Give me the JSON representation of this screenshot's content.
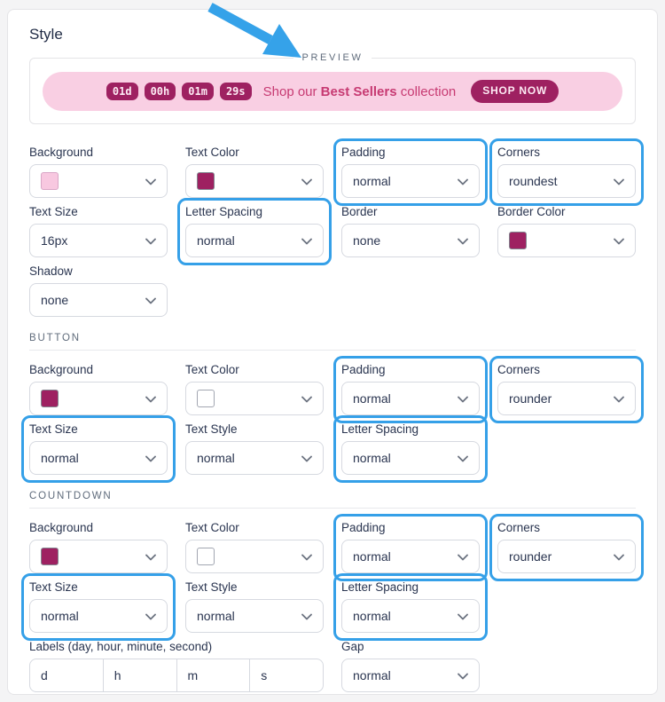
{
  "page": {
    "title": "Style"
  },
  "colors": {
    "accent_blue": "#35a0e8",
    "arrow_blue": "#35a2e9",
    "banner_background": "#f9cfe3",
    "chip_background": "#9e2161",
    "chip_text": "#fdeaf3",
    "message_text": "#c73a72",
    "swatch_light_pink": "#f8c8e0",
    "swatch_magenta": "#9e2161",
    "swatch_white": "#ffffff"
  },
  "preview": {
    "legend": "PREVIEW",
    "countdown_chips": [
      "01d",
      "00h",
      "01m",
      "29s"
    ],
    "message_prefix": "Shop our ",
    "message_bold": "Best Sellers",
    "message_suffix": " collection",
    "cta_label": "SHOP NOW"
  },
  "form": {
    "sections": [
      {
        "title": null,
        "rows": [
          {
            "fields": [
              {
                "type": "swatch",
                "name": "banner-background",
                "label": "Background",
                "swatch": "#f8c8e0",
                "swatch_border": "#d9a6c6",
                "highlight": false
              },
              {
                "type": "swatch",
                "name": "banner-text-color",
                "label": "Text Color",
                "swatch": "#9e2161",
                "swatch_border": "#83858f",
                "highlight": false
              },
              {
                "type": "select",
                "name": "banner-padding",
                "label": "Padding",
                "value": "normal",
                "highlight": true
              },
              {
                "type": "select",
                "name": "banner-corners",
                "label": "Corners",
                "value": "roundest",
                "highlight": true
              }
            ]
          },
          {
            "fields": [
              {
                "type": "select",
                "name": "banner-text-size",
                "label": "Text Size",
                "value": "16px",
                "highlight": false
              },
              {
                "type": "select",
                "name": "banner-letter-spacing",
                "label": "Letter Spacing",
                "value": "normal",
                "highlight": true
              },
              {
                "type": "select",
                "name": "banner-border",
                "label": "Border",
                "value": "none",
                "highlight": false
              },
              {
                "type": "swatch",
                "name": "banner-border-color",
                "label": "Border Color",
                "swatch": "#9e2161",
                "swatch_border": "#83858f",
                "highlight": false
              }
            ]
          },
          {
            "fields": [
              {
                "type": "select",
                "name": "banner-shadow",
                "label": "Shadow",
                "value": "none",
                "highlight": false
              }
            ]
          }
        ]
      },
      {
        "title": "BUTTON",
        "rows": [
          {
            "fields": [
              {
                "type": "swatch",
                "name": "button-background",
                "label": "Background",
                "swatch": "#9e2161",
                "swatch_border": "#83858f",
                "highlight": false
              },
              {
                "type": "swatch",
                "name": "button-text-color",
                "label": "Text Color",
                "swatch": "#ffffff",
                "swatch_border": "#a2a6b1",
                "highlight": false
              },
              {
                "type": "select",
                "name": "button-padding",
                "label": "Padding",
                "value": "normal",
                "highlight": true
              },
              {
                "type": "select",
                "name": "button-corners",
                "label": "Corners",
                "value": "rounder",
                "highlight": true
              }
            ]
          },
          {
            "fields": [
              {
                "type": "select",
                "name": "button-text-size",
                "label": "Text Size",
                "value": "normal",
                "highlight": true
              },
              {
                "type": "select",
                "name": "button-text-style",
                "label": "Text Style",
                "value": "normal",
                "highlight": false
              },
              {
                "type": "select",
                "name": "button-letter-spacing",
                "label": "Letter Spacing",
                "value": "normal",
                "highlight": true
              }
            ]
          }
        ]
      },
      {
        "title": "COUNTDOWN",
        "rows": [
          {
            "fields": [
              {
                "type": "swatch",
                "name": "countdown-background",
                "label": "Background",
                "swatch": "#9e2161",
                "swatch_border": "#83858f",
                "highlight": false
              },
              {
                "type": "swatch",
                "name": "countdown-text-color",
                "label": "Text Color",
                "swatch": "#ffffff",
                "swatch_border": "#a2a6b1",
                "highlight": false
              },
              {
                "type": "select",
                "name": "countdown-padding",
                "label": "Padding",
                "value": "normal",
                "highlight": true
              },
              {
                "type": "select",
                "name": "countdown-corners",
                "label": "Corners",
                "value": "rounder",
                "highlight": true
              }
            ]
          },
          {
            "fields": [
              {
                "type": "select",
                "name": "countdown-text-size",
                "label": "Text Size",
                "value": "normal",
                "highlight": true
              },
              {
                "type": "select",
                "name": "countdown-text-style",
                "label": "Text Style",
                "value": "normal",
                "highlight": false
              },
              {
                "type": "select",
                "name": "countdown-letter-spacing",
                "label": "Letter Spacing",
                "value": "normal",
                "highlight": true
              }
            ]
          },
          {
            "fields": [
              {
                "type": "inputs",
                "name": "countdown-labels",
                "label": "Labels (day, hour, minute, second)",
                "values": [
                  "d",
                  "h",
                  "m",
                  "s"
                ],
                "span": 2,
                "highlight": false
              },
              {
                "type": "select",
                "name": "countdown-gap",
                "label": "Gap",
                "value": "normal",
                "highlight": false
              }
            ]
          }
        ]
      }
    ]
  }
}
